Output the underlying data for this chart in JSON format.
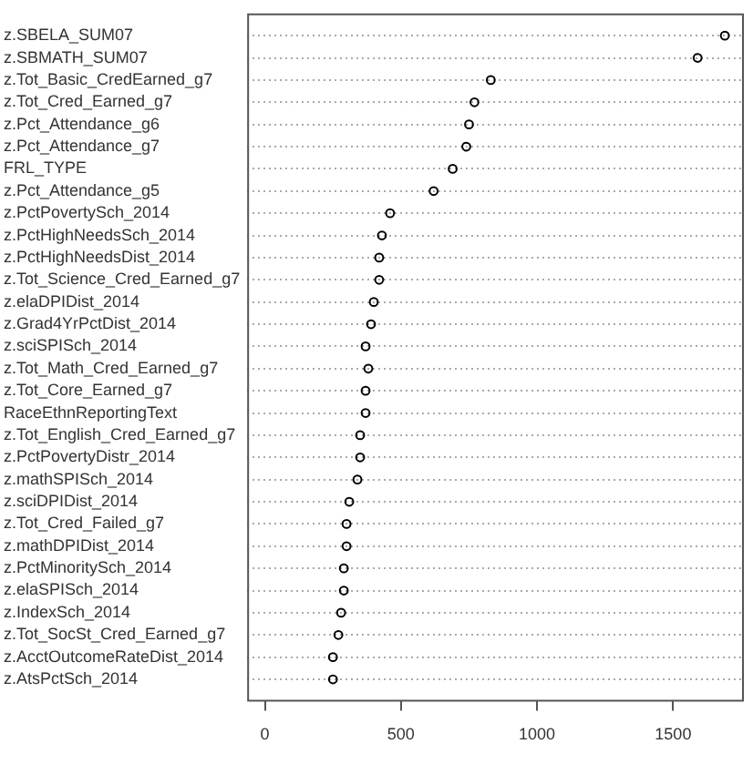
{
  "chart_data": {
    "type": "scatter",
    "orientation": "horizontal",
    "marker": "circle",
    "grid": "y",
    "color": "#000000",
    "categories": [
      "z.SBELA_SUM07",
      "z.SBMATH_SUM07",
      "z.Tot_Basic_CredEarned_g7",
      "z.Tot_Cred_Earned_g7",
      "z.Pct_Attendance_g6",
      "z.Pct_Attendance_g7",
      "FRL_TYPE",
      "z.Pct_Attendance_g5",
      "z.PctPovertySch_2014",
      "z.PctHighNeedsSch_2014",
      "z.PctHighNeedsDist_2014",
      "z.Tot_Science_Cred_Earned_g7",
      "z.elaDPIDist_2014",
      "z.Grad4YrPctDist_2014",
      "z.sciSPISch_2014",
      "z.Tot_Math_Cred_Earned_g7",
      "z.Tot_Core_Earned_g7",
      "RaceEthnReportingText",
      "z.Tot_English_Cred_Earned_g7",
      "z.PctPovertyDistr_2014",
      "z.mathSPISch_2014",
      "z.sciDPIDist_2014",
      "z.Tot_Cred_Failed_g7",
      "z.mathDPIDist_2014",
      "z.PctMinoritySch_2014",
      "z.elaSPISch_2014",
      "z.IndexSch_2014",
      "z.Tot_SocSt_Cred_Earned_g7",
      "z.AcctOutcomeRateDist_2014",
      "z.AtsPctSch_2014"
    ],
    "values": [
      1690,
      1590,
      830,
      770,
      750,
      740,
      690,
      620,
      460,
      430,
      420,
      420,
      400,
      390,
      370,
      380,
      370,
      370,
      350,
      350,
      340,
      310,
      300,
      300,
      290,
      290,
      280,
      270,
      250,
      250
    ],
    "xlim": [
      -65,
      1760
    ],
    "xticks": [
      0,
      500,
      1000,
      1500
    ]
  }
}
